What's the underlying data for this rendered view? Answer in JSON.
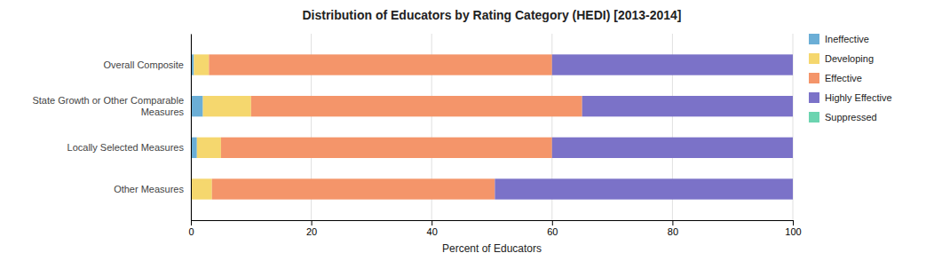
{
  "chart_data": {
    "type": "bar",
    "orientation": "horizontal",
    "stacked": true,
    "title": "Distribution of Educators by Rating Category (HEDI) [2013-2014]",
    "categories": [
      "Overall Composite",
      "State Growth or Other Comparable\nMeasures",
      "Locally Selected Measures",
      "Other Measures"
    ],
    "series": [
      {
        "name": "Ineffective",
        "color": "#6BAED6",
        "values": [
          0.5,
          2.0,
          1.0,
          0.0
        ]
      },
      {
        "name": "Developing",
        "color": "#F5D76E",
        "values": [
          2.5,
          8.0,
          4.0,
          3.5
        ]
      },
      {
        "name": "Effective",
        "color": "#F4956A",
        "values": [
          57.0,
          55.0,
          55.0,
          47.0
        ]
      },
      {
        "name": "Highly Effective",
        "color": "#7B72C8",
        "values": [
          40.0,
          35.0,
          40.0,
          49.5
        ]
      },
      {
        "name": "Suppressed",
        "color": "#6CD4B0",
        "values": [
          0.0,
          0.0,
          0.0,
          0.0
        ]
      }
    ],
    "xlabel": "Percent of Educators",
    "xlim": [
      0,
      100
    ],
    "xticks": [
      0,
      20,
      40,
      60,
      80,
      100
    ],
    "grid": true,
    "legend": "right"
  }
}
